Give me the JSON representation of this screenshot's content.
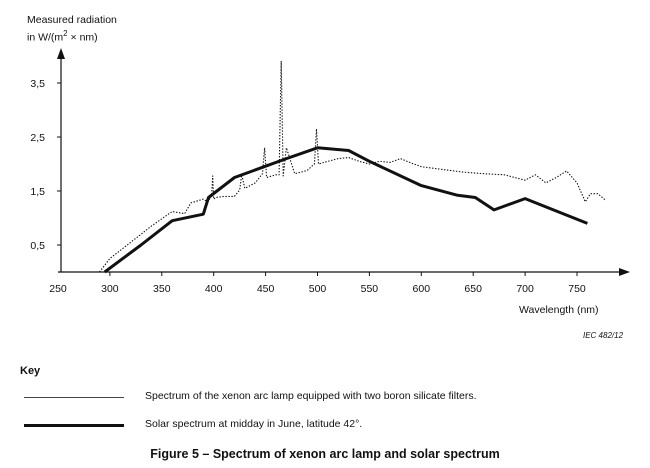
{
  "chart_data": {
    "type": "line",
    "title": "Figure 5 – Spectrum of xenon arc lamp and solar spectrum",
    "ylabel_line1": "Measured radiation",
    "ylabel_line2_prefix": "in W/(m",
    "ylabel_sup": "2",
    "ylabel_line2_suffix": " × nm)",
    "xlabel": "Wavelength   (nm)",
    "xlim": [
      250,
      780
    ],
    "ylim": [
      0,
      4.3
    ],
    "x_ticks": [
      250,
      300,
      350,
      400,
      450,
      500,
      550,
      600,
      650,
      700,
      750
    ],
    "y_ticks": [
      {
        "value": 0.5,
        "label": "0,5"
      },
      {
        "value": 1.5,
        "label": "1,5"
      },
      {
        "value": 2.5,
        "label": "2,5"
      },
      {
        "value": 3.5,
        "label": "3,5"
      }
    ],
    "series": [
      {
        "name": "Spectrum of the xenon arc lamp equipped with two boron silicate filters.",
        "style": "dotted",
        "x": [
          290,
          300,
          320,
          340,
          360,
          372,
          378,
          390,
          394,
          398,
          399,
          400,
          402,
          410,
          420,
          425,
          427,
          430,
          440,
          447,
          449,
          451,
          460,
          463,
          465,
          467,
          470,
          478,
          490,
          497,
          499,
          501,
          510,
          520,
          530,
          540,
          550,
          560,
          570,
          580,
          590,
          600,
          620,
          640,
          660,
          680,
          690,
          700,
          710,
          720,
          730,
          740,
          750,
          758,
          763,
          770,
          778
        ],
        "values": [
          0.0,
          0.25,
          0.55,
          0.85,
          1.12,
          1.08,
          1.28,
          1.35,
          1.3,
          1.4,
          1.78,
          1.35,
          1.38,
          1.4,
          1.4,
          1.52,
          1.8,
          1.55,
          1.65,
          1.82,
          2.3,
          1.75,
          1.8,
          1.8,
          3.9,
          1.78,
          2.3,
          1.82,
          1.88,
          2.0,
          2.65,
          2.0,
          2.05,
          2.1,
          2.12,
          2.05,
          2.0,
          2.05,
          2.03,
          2.1,
          2.02,
          1.95,
          1.9,
          1.85,
          1.82,
          1.8,
          1.75,
          1.7,
          1.8,
          1.65,
          1.75,
          1.87,
          1.65,
          1.3,
          1.45,
          1.45,
          1.32
        ]
      },
      {
        "name": "Solar spectrum at midday in June, latitude 42°.",
        "style": "solid-thick",
        "x": [
          295,
          330,
          360,
          390,
          395,
          420,
          470,
          500,
          530,
          550,
          600,
          635,
          652,
          670,
          700,
          760
        ],
        "values": [
          0.0,
          0.5,
          0.95,
          1.07,
          1.38,
          1.75,
          2.1,
          2.3,
          2.25,
          2.05,
          1.6,
          1.42,
          1.38,
          1.15,
          1.36,
          0.9
        ]
      }
    ]
  },
  "footer": {
    "ref": "IEC   482/12",
    "key_title": "Key",
    "caption": "Figure 5 – Spectrum of xenon arc lamp and solar spectrum"
  },
  "colors": {
    "ink": "#111111"
  }
}
